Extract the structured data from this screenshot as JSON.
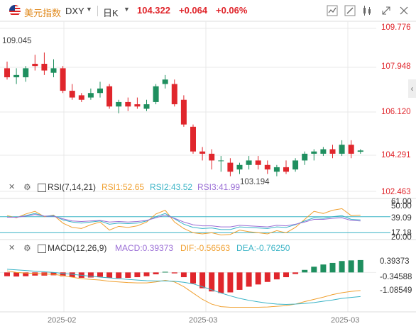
{
  "header": {
    "instrument_name": "美元指数",
    "symbol": "DXY",
    "period": "日K",
    "price": "104.322",
    "change": "+0.064",
    "change_pct": "+0.06%",
    "toolbar_icons": [
      "indicator-icon",
      "draw-icon",
      "candle-style-icon",
      "expand-icon",
      "settings-icon"
    ]
  },
  "price_axis": [
    "109.776",
    "107.948",
    "106.120",
    "104.291",
    "102.463"
  ],
  "annotations": {
    "high": "109.045",
    "low": "103.194"
  },
  "rsi": {
    "label": "RSI(7,14,21)",
    "rsi1": "RSI1:52.65",
    "rsi2": "RSI2:43.52",
    "rsi3": "RSI3:41.99",
    "axis": [
      "61.00",
      "50.00",
      "39.09",
      "17.18",
      "20.00"
    ],
    "colors": {
      "rsi1": "#f0a030",
      "rsi2": "#39b3c6",
      "rsi3": "#9b6fd6"
    }
  },
  "macd": {
    "label": "MACD(12,26,9)",
    "macd_val": "MACD:0.39373",
    "dif": "DIF:-0.56563",
    "dea": "DEA:-0.76250",
    "axis": [
      "0.39373",
      "-0.34588",
      "-1.08549"
    ],
    "colors": {
      "macd": "#9b6fd6",
      "dif": "#f0a030",
      "dea": "#39b3c6"
    }
  },
  "x_axis": [
    "2025-02",
    "2025-03",
    "2025-03"
  ],
  "colors": {
    "up": "#1f8f5f",
    "down": "#e0262c",
    "accent": "#e08a1e"
  },
  "chart_data": {
    "type": "candlestick",
    "title": "美元指数 DXY 日K",
    "ylim": [
      102.0,
      110.0
    ],
    "candles": [
      {
        "o": 108.0,
        "h": 108.3,
        "l": 107.5,
        "c": 107.6
      },
      {
        "o": 107.6,
        "h": 108.0,
        "l": 107.3,
        "c": 107.7
      },
      {
        "o": 107.6,
        "h": 108.1,
        "l": 107.4,
        "c": 108.0
      },
      {
        "o": 108.2,
        "h": 108.6,
        "l": 107.9,
        "c": 108.1
      },
      {
        "o": 108.2,
        "h": 108.7,
        "l": 107.7,
        "c": 107.9
      },
      {
        "o": 107.8,
        "h": 108.4,
        "l": 107.6,
        "c": 108.0
      },
      {
        "o": 108.0,
        "h": 108.1,
        "l": 106.9,
        "c": 107.0
      },
      {
        "o": 107.0,
        "h": 107.3,
        "l": 106.6,
        "c": 106.7
      },
      {
        "o": 106.8,
        "h": 106.9,
        "l": 106.5,
        "c": 106.6
      },
      {
        "o": 106.7,
        "h": 107.1,
        "l": 106.6,
        "c": 106.9
      },
      {
        "o": 106.9,
        "h": 107.4,
        "l": 106.7,
        "c": 107.1
      },
      {
        "o": 107.2,
        "h": 107.3,
        "l": 106.2,
        "c": 106.3
      },
      {
        "o": 106.3,
        "h": 106.6,
        "l": 106.0,
        "c": 106.5
      },
      {
        "o": 106.5,
        "h": 106.7,
        "l": 106.1,
        "c": 106.3
      },
      {
        "o": 106.4,
        "h": 106.7,
        "l": 106.2,
        "c": 106.3
      },
      {
        "o": 106.2,
        "h": 106.6,
        "l": 106.1,
        "c": 106.4
      },
      {
        "o": 106.5,
        "h": 107.3,
        "l": 106.4,
        "c": 107.2
      },
      {
        "o": 107.3,
        "h": 107.7,
        "l": 107.1,
        "c": 107.5
      },
      {
        "o": 107.3,
        "h": 107.5,
        "l": 106.3,
        "c": 106.4
      },
      {
        "o": 106.6,
        "h": 106.8,
        "l": 105.4,
        "c": 105.5
      },
      {
        "o": 105.4,
        "h": 105.5,
        "l": 104.2,
        "c": 104.3
      },
      {
        "o": 104.3,
        "h": 104.5,
        "l": 103.9,
        "c": 104.2
      },
      {
        "o": 104.2,
        "h": 104.4,
        "l": 103.5,
        "c": 103.9
      },
      {
        "o": 103.9,
        "h": 104.1,
        "l": 103.4,
        "c": 103.9
      },
      {
        "o": 103.8,
        "h": 104.0,
        "l": 103.2,
        "c": 103.4
      },
      {
        "o": 103.5,
        "h": 103.8,
        "l": 103.3,
        "c": 103.7
      },
      {
        "o": 103.7,
        "h": 104.1,
        "l": 103.5,
        "c": 103.9
      },
      {
        "o": 103.9,
        "h": 104.1,
        "l": 103.5,
        "c": 103.7
      },
      {
        "o": 103.7,
        "h": 103.9,
        "l": 103.3,
        "c": 103.5
      },
      {
        "o": 103.4,
        "h": 103.7,
        "l": 103.2,
        "c": 103.6
      },
      {
        "o": 103.6,
        "h": 103.9,
        "l": 103.3,
        "c": 103.4
      },
      {
        "o": 103.5,
        "h": 104.0,
        "l": 103.4,
        "c": 103.9
      },
      {
        "o": 103.9,
        "h": 104.3,
        "l": 103.7,
        "c": 104.2
      },
      {
        "o": 104.2,
        "h": 104.4,
        "l": 103.9,
        "c": 104.3
      },
      {
        "o": 104.2,
        "h": 104.5,
        "l": 104.1,
        "c": 104.4
      },
      {
        "o": 104.4,
        "h": 104.6,
        "l": 104.0,
        "c": 104.2
      },
      {
        "o": 104.2,
        "h": 104.8,
        "l": 104.1,
        "c": 104.6
      },
      {
        "o": 104.6,
        "h": 104.8,
        "l": 104.0,
        "c": 104.2
      },
      {
        "o": 104.3,
        "h": 104.4,
        "l": 104.2,
        "c": 104.32
      }
    ]
  }
}
